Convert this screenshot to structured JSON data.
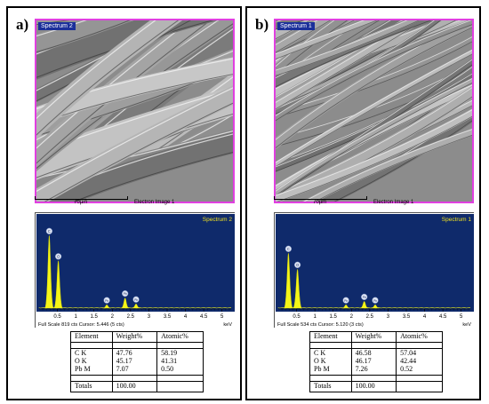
{
  "colors": {
    "frame": "#e040e0",
    "spectrum_bg": "#0f2a6b",
    "peak": "#f5f518",
    "spectrum_label": "#f0e020",
    "tag_bg": "#1b2f9a"
  },
  "panels": [
    {
      "label": "a)",
      "sem": {
        "tag": "Spectrum 2",
        "scale_text": "70µm",
        "image_caption": "Electron Image 1",
        "texture": "smooth overlapping polymer fibres"
      },
      "spectrum": {
        "title": "Spectrum 2",
        "footer": "Full Scale 819 cts Cursor: 5.446  (5 cts)",
        "unit": "keV",
        "ticks": [
          "0.5",
          "1",
          "1.5",
          "2",
          "2.5",
          "3",
          "3.5",
          "4",
          "4.5",
          "5"
        ],
        "peaks": [
          {
            "label": "C",
            "kev": 0.277,
            "height": 0.86
          },
          {
            "label": "O",
            "kev": 0.525,
            "height": 0.56
          },
          {
            "label": "Pb",
            "kev": 1.85,
            "height": 0.04
          },
          {
            "label": "Pb",
            "kev": 2.35,
            "height": 0.12
          },
          {
            "label": "Pb",
            "kev": 2.65,
            "height": 0.05
          }
        ]
      },
      "table": {
        "headers": [
          "Element",
          "Weight%",
          "Atomic%"
        ],
        "elements": [
          "C K",
          "O K",
          "Pb M"
        ],
        "weight": [
          "47.76",
          "45.17",
          "7.07"
        ],
        "atomic": [
          "58.19",
          "41.31",
          "0.50"
        ],
        "totals_label": "Totals",
        "totals_value": "100.00"
      }
    },
    {
      "label": "b)",
      "sem": {
        "tag": "Spectrum 1",
        "scale_text": "70µm",
        "image_caption": "Electron Image 1",
        "texture": "dense aligned fibres"
      },
      "spectrum": {
        "title": "Spectrum 1",
        "footer": "Full Scale 534 cts Cursor: 5.120  (3 cts)",
        "unit": "keV",
        "ticks": [
          "0.5",
          "1",
          "1.5",
          "2",
          "2.5",
          "3",
          "3.5",
          "4",
          "4.5",
          "5"
        ],
        "peaks": [
          {
            "label": "C",
            "kev": 0.277,
            "height": 0.65
          },
          {
            "label": "O",
            "kev": 0.525,
            "height": 0.46
          },
          {
            "label": "Pb",
            "kev": 1.85,
            "height": 0.04
          },
          {
            "label": "Pb",
            "kev": 2.35,
            "height": 0.08
          },
          {
            "label": "Pb",
            "kev": 2.65,
            "height": 0.04
          }
        ]
      },
      "table": {
        "headers": [
          "Element",
          "Weight%",
          "Atomic%"
        ],
        "elements": [
          "C K",
          "O K",
          "Pb M"
        ],
        "weight": [
          "46.58",
          "46.17",
          "7.26"
        ],
        "atomic": [
          "57.04",
          "42.44",
          "0.52"
        ],
        "totals_label": "Totals",
        "totals_value": "100.00"
      }
    }
  ]
}
